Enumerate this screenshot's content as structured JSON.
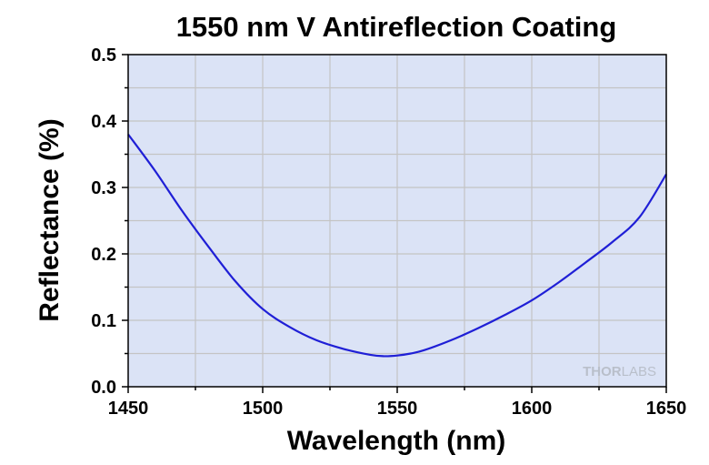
{
  "chart_data": {
    "type": "line",
    "title": "1550 nm V Antireflection Coating",
    "xlabel": "Wavelength (nm)",
    "ylabel": "Reflectance (%)",
    "xlim": [
      1450,
      1650
    ],
    "ylim": [
      0,
      0.5
    ],
    "x_ticks": [
      "1450",
      "1500",
      "1550",
      "1600",
      "1650"
    ],
    "y_ticks": [
      "0.0",
      "0.1",
      "0.2",
      "0.3",
      "0.4",
      "0.5"
    ],
    "grid": true,
    "series": [
      {
        "x": [
          1450,
          1460,
          1470,
          1480,
          1490,
          1500,
          1510,
          1520,
          1530,
          1540,
          1545,
          1550,
          1555,
          1560,
          1570,
          1580,
          1590,
          1600,
          1610,
          1620,
          1630,
          1640,
          1650
        ],
        "y": [
          0.38,
          0.325,
          0.265,
          0.21,
          0.158,
          0.117,
          0.09,
          0.07,
          0.057,
          0.048,
          0.046,
          0.047,
          0.05,
          0.055,
          0.07,
          0.088,
          0.108,
          0.13,
          0.157,
          0.187,
          0.218,
          0.255,
          0.32
        ]
      }
    ],
    "colors": {
      "line": "#1f1fd6",
      "plot_background": "#dbe3f6",
      "grid": "#c4c4c4"
    },
    "watermark": {
      "prefix": "THOR",
      "suffix": "LABS"
    }
  }
}
